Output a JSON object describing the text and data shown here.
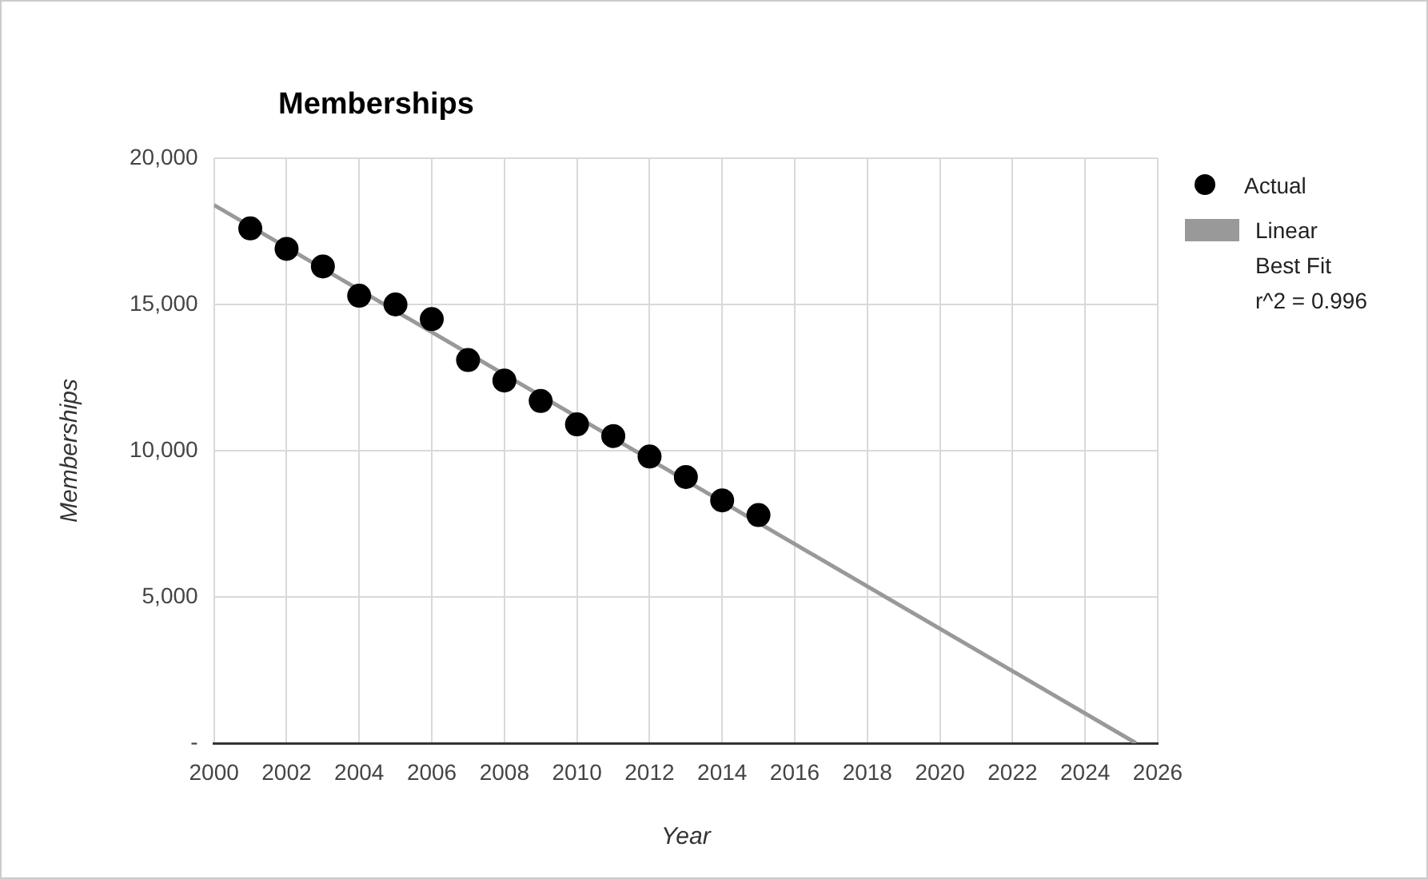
{
  "chart_data": {
    "type": "scatter",
    "title": "Memberships",
    "xlabel": "Year",
    "ylabel": "Memberships",
    "xlim": [
      2000,
      2026
    ],
    "xticks": [
      2000,
      2002,
      2004,
      2006,
      2008,
      2010,
      2012,
      2014,
      2016,
      2018,
      2020,
      2022,
      2024,
      2026
    ],
    "ylim": [
      0,
      20000
    ],
    "yticks": [
      {
        "value": 0,
        "label": "-"
      },
      {
        "value": 5000,
        "label": "5,000"
      },
      {
        "value": 10000,
        "label": "10,000"
      },
      {
        "value": 15000,
        "label": "15,000"
      },
      {
        "value": 20000,
        "label": "20,000"
      }
    ],
    "grid": true,
    "legend": "right",
    "series": [
      {
        "name": "Actual",
        "type": "scatter",
        "marker": "circle",
        "color": "#000000",
        "x": [
          2001,
          2002,
          2003,
          2004,
          2005,
          2006,
          2007,
          2008,
          2009,
          2010,
          2011,
          2012,
          2013,
          2014,
          2015
        ],
        "values": [
          17600,
          16900,
          16300,
          15300,
          15000,
          14500,
          13100,
          12400,
          11700,
          10900,
          10500,
          9800,
          9100,
          8300,
          7800
        ]
      },
      {
        "name": "Linear\nBest Fit\nr^2 = 0.996",
        "type": "line",
        "marker": "none",
        "color": "#999999",
        "x": [
          2000,
          2025.4
        ],
        "values": [
          18400,
          0
        ]
      }
    ]
  }
}
